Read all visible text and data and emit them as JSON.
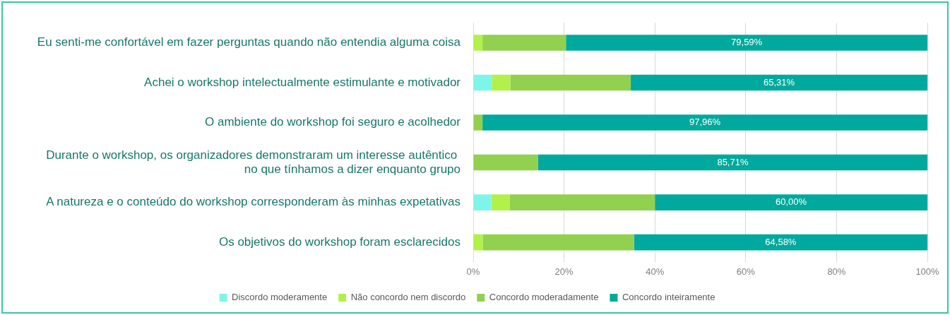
{
  "chart_data": {
    "type": "bar",
    "orientation": "horizontal",
    "stacked": true,
    "categories": [
      "Eu senti-me confortável em fazer perguntas quando não entendia alguma coisa",
      "Achei o workshop intelectualmente estimulante e motivador",
      "O ambiente do workshop foi seguro e acolhedor",
      "Durante o workshop, os organizadores demonstraram um interesse autêntico  no que tínhamos a dizer enquanto grupo",
      "A natureza e o conteúdo do workshop corresponderam às minhas expetativas",
      "Os objetivos do workshop foram esclarecidos"
    ],
    "series": [
      {
        "name": "Discordo moderamente",
        "color": "#7ff5ea",
        "values": [
          0,
          4.08,
          0,
          0,
          4,
          0
        ]
      },
      {
        "name": "Não concordo nem discordo",
        "color": "#b2f04a",
        "values": [
          2.04,
          4.08,
          0,
          0,
          4,
          2.08
        ]
      },
      {
        "name": "Concordo moderadamente",
        "color": "#92d050",
        "values": [
          18.37,
          26.53,
          2.04,
          14.29,
          32,
          33.34
        ]
      },
      {
        "name": "Concordo inteiramente",
        "color": "#00a99d",
        "values": [
          79.59,
          65.31,
          97.96,
          85.71,
          60,
          64.58
        ],
        "value_labels": [
          "79,59%",
          "65,31%",
          "97,96%",
          "85,71%",
          "60,00%",
          "64,58%"
        ]
      }
    ],
    "xlim": [
      0,
      100
    ],
    "xticks": [
      {
        "value": 0,
        "label": "0%"
      },
      {
        "value": 20,
        "label": "20%"
      },
      {
        "value": 40,
        "label": "40%"
      },
      {
        "value": 60,
        "label": "60%"
      },
      {
        "value": 80,
        "label": "80%"
      },
      {
        "value": 100,
        "label": "100%"
      }
    ],
    "grid": "x",
    "legend": "bottom"
  }
}
